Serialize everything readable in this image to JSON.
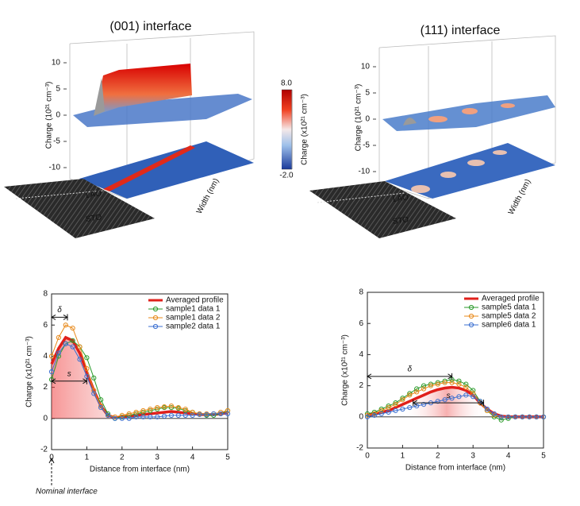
{
  "chart_data": [
    {
      "type": "surface3d",
      "title": "(001) interface",
      "zlabel": "Charge (10²¹ cm⁻³)",
      "zticks": [
        -10,
        -5,
        0,
        5,
        10
      ],
      "ylabel": "Width (nm)",
      "labels": [
        "LAO",
        "STO"
      ]
    },
    {
      "type": "surface3d",
      "title": "(111) interface",
      "zlabel": "Charge (10²¹ cm⁻³)",
      "zticks": [
        -10,
        -5,
        0,
        5,
        10
      ],
      "ylabel": "Width (nm)",
      "labels": [
        "LAO",
        "STO"
      ]
    },
    {
      "type": "colorbar",
      "label": "Charge (x10²¹ cm⁻³)",
      "range": [
        -2,
        8
      ],
      "ticks": [
        {
          "value": 8,
          "label": "8.0"
        },
        {
          "value": -2,
          "label": "-2.0"
        }
      ]
    },
    {
      "type": "line",
      "xlabel": "Distance from interface (nm)",
      "ylabel": "Charge (x10²¹ cm⁻³)",
      "xlim": [
        0,
        5
      ],
      "ylim": [
        -2,
        8
      ],
      "xticks": [
        0,
        1,
        2,
        3,
        4,
        5
      ],
      "yticks": [
        -2,
        0,
        2,
        4,
        6,
        8
      ],
      "legend": "upper right",
      "x": [
        0,
        0.2,
        0.4,
        0.6,
        0.8,
        1.0,
        1.2,
        1.4,
        1.6,
        1.8,
        2.0,
        2.2,
        2.4,
        2.6,
        2.8,
        3.0,
        3.2,
        3.4,
        3.6,
        3.8,
        4.0,
        4.2,
        4.4,
        4.6,
        4.8,
        5.0
      ],
      "series": [
        {
          "name": "Averaged profile",
          "color": "#e0201b",
          "values": [
            3.5,
            4.5,
            5.2,
            5.0,
            4.2,
            3.0,
            1.8,
            0.8,
            0.2,
            0.05,
            0.1,
            0.15,
            0.2,
            0.25,
            0.3,
            0.35,
            0.4,
            0.45,
            0.4,
            0.35,
            0.3,
            0.25,
            0.25,
            0.25,
            0.3,
            0.35
          ]
        },
        {
          "name": "sample1 data 1",
          "color": "#2a9a2a",
          "values": [
            2.5,
            4.0,
            4.8,
            5.0,
            4.6,
            3.9,
            2.6,
            1.2,
            0.3,
            0,
            0.1,
            0.2,
            0.3,
            0.4,
            0.5,
            0.6,
            0.7,
            0.7,
            0.65,
            0.5,
            0.4,
            0.3,
            0.2,
            0.2,
            0.3,
            0.5
          ]
        },
        {
          "name": "sample1 data 2",
          "color": "#e8891a",
          "values": [
            4.0,
            5.2,
            6.0,
            5.8,
            4.6,
            3.2,
            1.8,
            0.8,
            0.2,
            0.1,
            0.2,
            0.3,
            0.4,
            0.5,
            0.6,
            0.7,
            0.75,
            0.8,
            0.7,
            0.6,
            0.4,
            0.3,
            0.3,
            0.3,
            0.4,
            0.5
          ]
        },
        {
          "name": "sample2 data 1",
          "color": "#3b6fd0",
          "values": [
            3.0,
            4.2,
            4.8,
            4.6,
            3.8,
            2.7,
            1.6,
            0.7,
            0.2,
            0,
            0,
            0,
            0.1,
            0.1,
            0.1,
            0.1,
            0.15,
            0.2,
            0.2,
            0.2,
            0.2,
            0.25,
            0.25,
            0.3,
            0.3,
            0.3
          ]
        }
      ],
      "annotations": [
        {
          "text": "δ",
          "x": [
            0,
            0.45
          ],
          "y": 6.5
        },
        {
          "text": "s",
          "x": [
            0,
            1.0
          ],
          "y": 2.4
        }
      ],
      "note": "Nominal interface"
    },
    {
      "type": "line",
      "xlabel": "Distance from interface (nm)",
      "ylabel": "Charge (x10²¹ cm⁻³)",
      "xlim": [
        0,
        5
      ],
      "ylim": [
        -2,
        8
      ],
      "xticks": [
        0,
        1,
        2,
        3,
        4,
        5
      ],
      "yticks": [
        -2,
        0,
        2,
        4,
        6,
        8
      ],
      "legend": "upper right",
      "x": [
        0,
        0.2,
        0.4,
        0.6,
        0.8,
        1.0,
        1.2,
        1.4,
        1.6,
        1.8,
        2.0,
        2.2,
        2.4,
        2.6,
        2.8,
        3.0,
        3.2,
        3.4,
        3.6,
        3.8,
        4.0,
        4.2,
        4.4,
        4.6,
        4.8,
        5.0
      ],
      "series": [
        {
          "name": "Averaged profile",
          "color": "#e0201b",
          "values": [
            0.1,
            0.2,
            0.3,
            0.4,
            0.6,
            0.8,
            1.0,
            1.2,
            1.4,
            1.6,
            1.75,
            1.85,
            1.9,
            1.85,
            1.7,
            1.4,
            0.9,
            0.5,
            0.2,
            0.05,
            0,
            0,
            0,
            0,
            0,
            0
          ]
        },
        {
          "name": "sample5 data 1",
          "color": "#2a9a2a",
          "values": [
            0.2,
            0.3,
            0.5,
            0.7,
            0.9,
            1.2,
            1.5,
            1.8,
            2.0,
            2.1,
            2.2,
            2.3,
            2.4,
            2.3,
            2.1,
            1.7,
            1.0,
            0.4,
            0,
            -0.2,
            -0.1,
            0,
            0,
            0,
            0,
            0
          ]
        },
        {
          "name": "sample5 data 2",
          "color": "#e8891a",
          "values": [
            0.1,
            0.2,
            0.4,
            0.6,
            0.8,
            1.1,
            1.4,
            1.6,
            1.8,
            2.0,
            2.1,
            2.2,
            2.2,
            2.1,
            1.9,
            1.5,
            0.9,
            0.4,
            0.1,
            0,
            0,
            0,
            0,
            0,
            0,
            0
          ]
        },
        {
          "name": "sample6 data 1",
          "color": "#3b6fd0",
          "values": [
            0,
            0.1,
            0.2,
            0.3,
            0.4,
            0.5,
            0.6,
            0.7,
            0.8,
            0.9,
            1.0,
            1.1,
            1.2,
            1.3,
            1.4,
            1.3,
            1.0,
            0.5,
            0.2,
            0,
            0,
            0,
            0,
            0,
            0,
            0
          ]
        }
      ],
      "annotations": [
        {
          "text": "δ",
          "x": [
            0,
            2.4
          ],
          "y": 2.6
        },
        {
          "text": "s",
          "x": [
            1.3,
            3.3
          ],
          "y": 0.9
        }
      ]
    }
  ]
}
